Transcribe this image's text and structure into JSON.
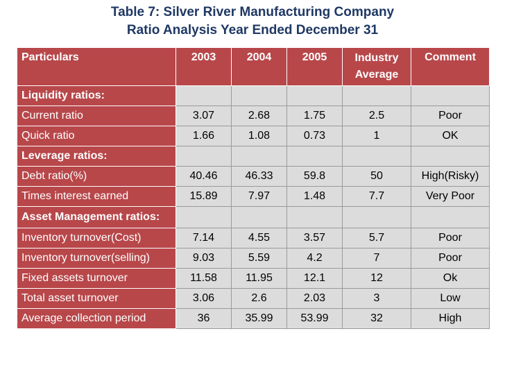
{
  "title": {
    "line1": "Table 7: Silver River Manufacturing Company",
    "line2": "Ratio Analysis Year Ended December 31"
  },
  "table": {
    "headers": [
      "Particulars",
      "2003",
      "2004",
      "2005",
      "Industry Average",
      "Comment"
    ],
    "sections": {
      "liquidity": "Liquidity ratios:",
      "leverage": "Leverage ratios:",
      "asset": "Asset Management ratios:"
    },
    "rows": [
      {
        "label": "Current ratio",
        "y2003": "3.07",
        "y2004": "2.68",
        "y2005": "1.75",
        "industry": "2.5",
        "comment": "Poor"
      },
      {
        "label": "Quick ratio",
        "y2003": "1.66",
        "y2004": "1.08",
        "y2005": "0.73",
        "industry": "1",
        "comment": "OK"
      },
      {
        "label": "Debt ratio(%)",
        "y2003": "40.46",
        "y2004": "46.33",
        "y2005": "59.8",
        "industry": "50",
        "comment": "High(Risky)"
      },
      {
        "label": "Times interest earned",
        "y2003": "15.89",
        "y2004": "7.97",
        "y2005": "1.48",
        "industry": "7.7",
        "comment": "Very Poor"
      },
      {
        "label": "Inventory turnover(Cost)",
        "y2003": "7.14",
        "y2004": "4.55",
        "y2005": "3.57",
        "industry": "5.7",
        "comment": "Poor"
      },
      {
        "label": "Inventory turnover(selling)",
        "y2003": "9.03",
        "y2004": "5.59",
        "y2005": "4.2",
        "industry": "7",
        "comment": "Poor"
      },
      {
        "label": "Fixed assets turnover",
        "y2003": "11.58",
        "y2004": "11.95",
        "y2005": "12.1",
        "industry": "12",
        "comment": "Ok"
      },
      {
        "label": "Total asset turnover",
        "y2003": "3.06",
        "y2004": "2.6",
        "y2005": "2.03",
        "industry": "3",
        "comment": "Low"
      },
      {
        "label": "Average collection period",
        "y2003": "36",
        "y2004": "35.99",
        "y2005": "53.99",
        "industry": "32",
        "comment": "High"
      }
    ]
  },
  "colors": {
    "title": "#1f3864",
    "header_red": "#b8474a",
    "cell_gray": "#dcdcdc"
  }
}
